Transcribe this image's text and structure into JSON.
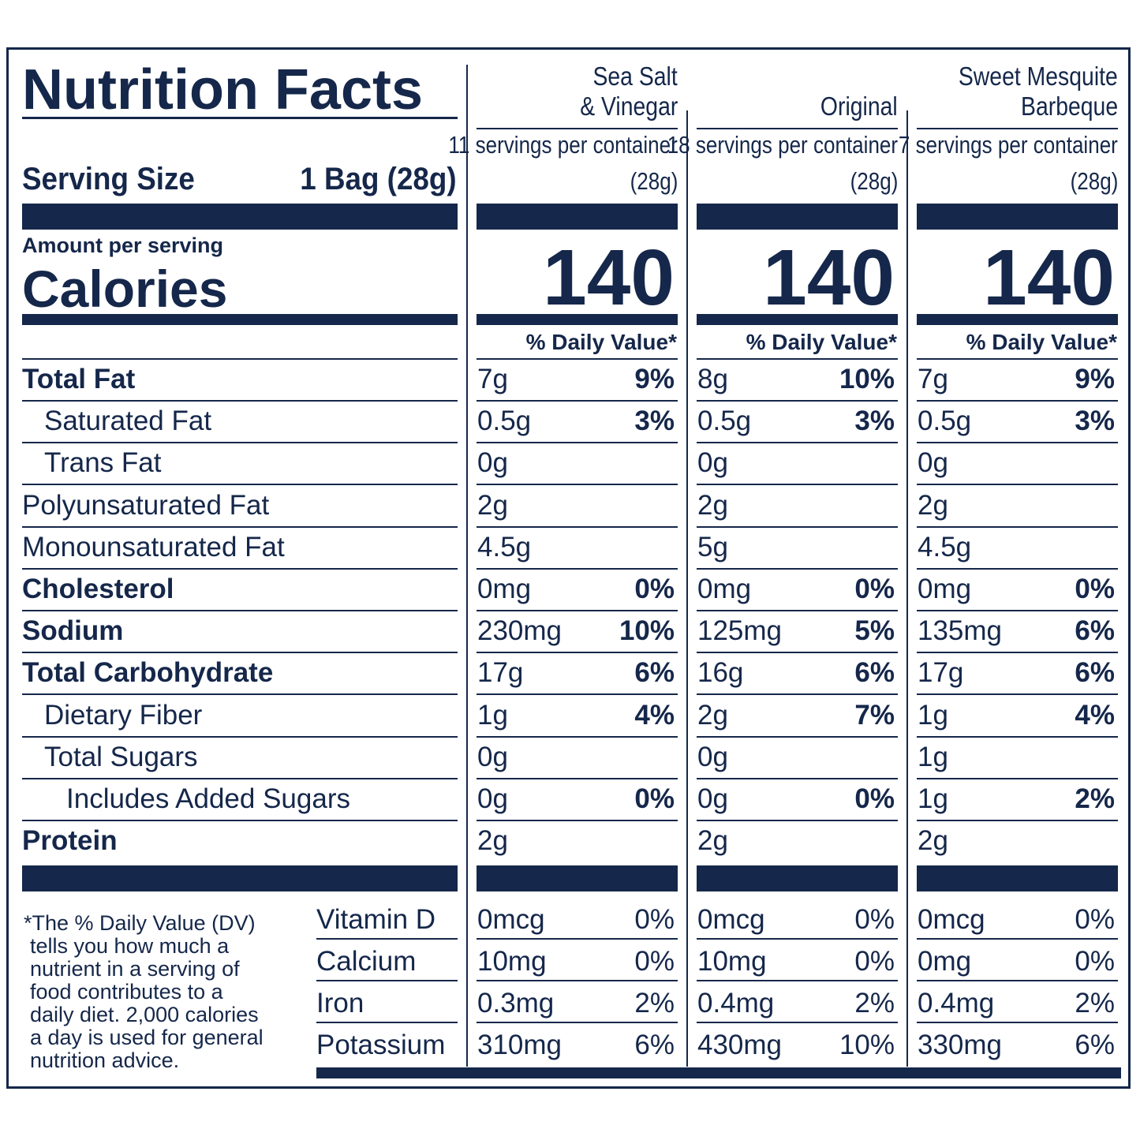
{
  "label": {
    "title": "Nutrition Facts",
    "serving_size_label": "Serving Size",
    "serving_size_value": "1 Bag (28g)",
    "amount_per_serving": "Amount per serving",
    "calories_label": "Calories",
    "daily_value_header": "% Daily Value*"
  },
  "products": [
    {
      "name_line1": "Sea Salt",
      "name_line2": "& Vinegar",
      "servings": "11 servings per container",
      "serving_weight": "(28g)",
      "calories": "140"
    },
    {
      "name_line1": "",
      "name_line2": "Original",
      "servings": "18 servings per container",
      "serving_weight": "(28g)",
      "calories": "140"
    },
    {
      "name_line1": "Sweet Mesquite",
      "name_line2": "Barbeque",
      "servings": "7 servings per container",
      "serving_weight": "(28g)",
      "calories": "140"
    }
  ],
  "nutrients": [
    {
      "label": "Total Fat",
      "values": [
        [
          "7g",
          "9%"
        ],
        [
          "8g",
          "10%"
        ],
        [
          "7g",
          "9%"
        ]
      ]
    },
    {
      "label": "Saturated Fat",
      "values": [
        [
          "0.5g",
          "3%"
        ],
        [
          "0.5g",
          "3%"
        ],
        [
          "0.5g",
          "3%"
        ]
      ]
    },
    {
      "label": "Trans Fat",
      "values": [
        [
          "0g",
          ""
        ],
        [
          "0g",
          ""
        ],
        [
          "0g",
          ""
        ]
      ]
    },
    {
      "label": "Polyunsaturated Fat",
      "values": [
        [
          "2g",
          ""
        ],
        [
          "2g",
          ""
        ],
        [
          "2g",
          ""
        ]
      ]
    },
    {
      "label": "Monounsaturated Fat",
      "values": [
        [
          "4.5g",
          ""
        ],
        [
          "5g",
          ""
        ],
        [
          "4.5g",
          ""
        ]
      ]
    },
    {
      "label": "Cholesterol",
      "values": [
        [
          "0mg",
          "0%"
        ],
        [
          "0mg",
          "0%"
        ],
        [
          "0mg",
          "0%"
        ]
      ]
    },
    {
      "label": "Sodium",
      "values": [
        [
          "230mg",
          "10%"
        ],
        [
          "125mg",
          "5%"
        ],
        [
          "135mg",
          "6%"
        ]
      ]
    },
    {
      "label": "Total Carbohydrate",
      "values": [
        [
          "17g",
          "6%"
        ],
        [
          "16g",
          "6%"
        ],
        [
          "17g",
          "6%"
        ]
      ]
    },
    {
      "label": "Dietary Fiber",
      "values": [
        [
          "1g",
          "4%"
        ],
        [
          "2g",
          "7%"
        ],
        [
          "1g",
          "4%"
        ]
      ]
    },
    {
      "label": "Total Sugars",
      "values": [
        [
          "0g",
          ""
        ],
        [
          "0g",
          ""
        ],
        [
          "1g",
          ""
        ]
      ]
    },
    {
      "label": "Includes Added Sugars",
      "values": [
        [
          "0g",
          "0%"
        ],
        [
          "0g",
          "0%"
        ],
        [
          "1g",
          "2%"
        ]
      ]
    },
    {
      "label": "Protein",
      "values": [
        [
          "2g",
          ""
        ],
        [
          "2g",
          ""
        ],
        [
          "2g",
          ""
        ]
      ]
    }
  ],
  "vitamins": [
    {
      "label": "Vitamin D",
      "values": [
        [
          "0mcg",
          "0%"
        ],
        [
          "0mcg",
          "0%"
        ],
        [
          "0mcg",
          "0%"
        ]
      ]
    },
    {
      "label": "Calcium",
      "values": [
        [
          "10mg",
          "0%"
        ],
        [
          "10mg",
          "0%"
        ],
        [
          "0mg",
          "0%"
        ]
      ]
    },
    {
      "label": "Iron",
      "values": [
        [
          "0.3mg",
          "2%"
        ],
        [
          "0.4mg",
          "2%"
        ],
        [
          "0.4mg",
          "2%"
        ]
      ]
    },
    {
      "label": "Potassium",
      "values": [
        [
          "310mg",
          "6%"
        ],
        [
          "430mg",
          "10%"
        ],
        [
          "330mg",
          "6%"
        ]
      ]
    }
  ],
  "footnote_lines": [
    "*The % Daily Value (DV)",
    "tells you how much a",
    "nutrient in a serving of",
    "food contributes to a",
    "daily diet. 2,000 calories",
    "a day is used for general",
    "nutrition advice."
  ]
}
